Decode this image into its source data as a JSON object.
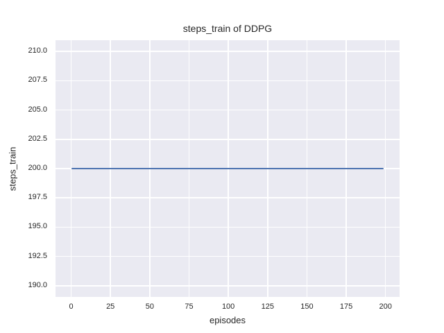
{
  "chart_data": {
    "type": "line",
    "title": "steps_train of DDPG",
    "xlabel": "episodes",
    "ylabel": "steps_train",
    "x_ticks": [
      0,
      25,
      50,
      75,
      100,
      125,
      150,
      175,
      200
    ],
    "x_tick_labels": [
      "0",
      "25",
      "50",
      "75",
      "100",
      "125",
      "150",
      "175",
      "200"
    ],
    "y_ticks": [
      190.0,
      192.5,
      195.0,
      197.5,
      200.0,
      202.5,
      205.0,
      207.5,
      210.0
    ],
    "y_tick_labels": [
      "190.0",
      "192.5",
      "195.0",
      "197.5",
      "200.0",
      "202.5",
      "205.0",
      "207.5",
      "210.0"
    ],
    "xlim": [
      -9.95,
      208.95
    ],
    "ylim": [
      189.05,
      210.95
    ],
    "grid": true,
    "legend_position": "none",
    "series": [
      {
        "name": "steps_train",
        "x": [
          0,
          199
        ],
        "y": [
          200,
          200
        ],
        "color": "#4c72b0"
      }
    ],
    "colors": {
      "figure_background": "#ffffff",
      "plot_background": "#eaeaf2",
      "grid": "#ffffff",
      "text": "#262626"
    }
  }
}
